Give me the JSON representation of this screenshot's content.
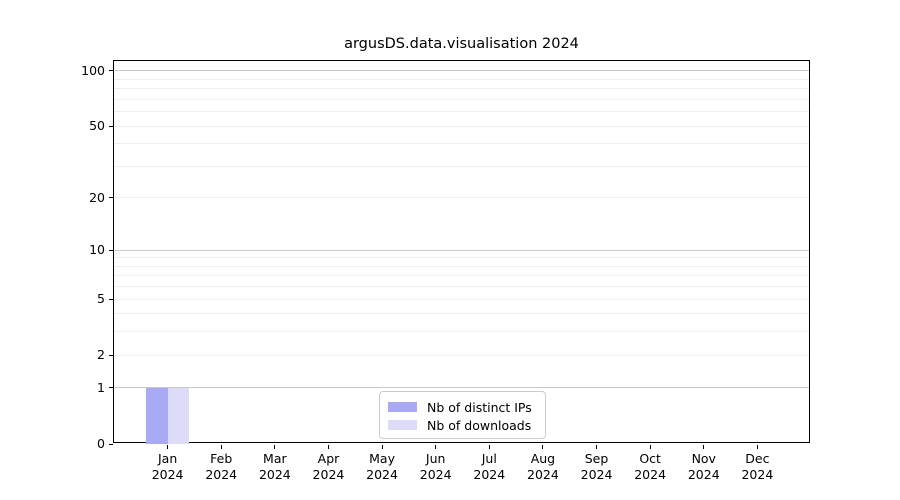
{
  "chart_data": {
    "type": "bar",
    "title": "argusDS.data.visualisation 2024",
    "xlabel": "",
    "ylabel": "",
    "year_label": "2024",
    "categories": [
      "Jan",
      "Feb",
      "Mar",
      "Apr",
      "May",
      "Jun",
      "Jul",
      "Aug",
      "Sep",
      "Oct",
      "Nov",
      "Dec"
    ],
    "series": [
      {
        "name": "Nb of distinct IPs",
        "color": "#a9a9f5",
        "values": [
          1,
          0,
          0,
          0,
          0,
          0,
          0,
          0,
          0,
          0,
          0,
          0
        ]
      },
      {
        "name": "Nb of downloads",
        "color": "#dcdcf8",
        "values": [
          1,
          0,
          0,
          0,
          0,
          0,
          0,
          0,
          0,
          0,
          0,
          0
        ]
      }
    ],
    "y_scale": "log10(1+v)",
    "ylim": [
      0,
      113
    ],
    "y_ticks": [
      0,
      1,
      2,
      5,
      10,
      20,
      50,
      100
    ],
    "y_major_gridlines": [
      1,
      10,
      100
    ],
    "y_minor_gridlines": [
      2,
      3,
      4,
      5,
      6,
      7,
      8,
      9,
      20,
      30,
      40,
      50,
      60,
      70,
      80,
      90
    ],
    "grid": true,
    "legend_position": "lower center",
    "colors": {
      "major_grid": "#c9c9c9",
      "minor_grid": "#eeeeee",
      "spine": "#000000",
      "background": "#ffffff"
    }
  }
}
